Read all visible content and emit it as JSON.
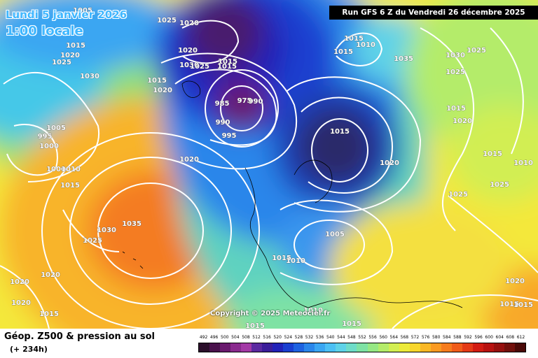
{
  "header": {
    "date_line": "Lundi 5 janvier 2026",
    "time_line": "1:00 locale",
    "run_banner": "Run GFS 6 Z du Vendredi 26 décembre 2025",
    "copyright": "Copyright © 2025 Meteociel.fr"
  },
  "footer": {
    "title": "Géop. Z500 & pression au sol",
    "lead": "(+ 234h)"
  },
  "legend": {
    "values": [
      "492",
      "496",
      "500",
      "504",
      "508",
      "512",
      "516",
      "520",
      "524",
      "528",
      "532",
      "536",
      "540",
      "544",
      "548",
      "552",
      "556",
      "560",
      "564",
      "568",
      "572",
      "576",
      "580",
      "584",
      "588",
      "592",
      "596",
      "600",
      "604",
      "608",
      "612"
    ],
    "colors": [
      "#2b0f2b",
      "#4a124c",
      "#6a1a6e",
      "#8a2a8e",
      "#a33aa6",
      "#5b2aa0",
      "#3b1e9a",
      "#2222b8",
      "#1a3fd0",
      "#1e62e0",
      "#2a86ea",
      "#3aa6f2",
      "#4cc0f4",
      "#5ed2e8",
      "#6edcc8",
      "#7ee2a4",
      "#96e884",
      "#b4ec6a",
      "#d2ee52",
      "#ecea3a",
      "#f8d62c",
      "#fab826",
      "#fa9a22",
      "#f67c1e",
      "#f05c1a",
      "#e43a16",
      "#d21c12",
      "#b81210",
      "#96100e",
      "#72100c",
      "#4a0a08"
    ]
  },
  "pressure_labels": [
    "1005",
    "1025",
    "1020",
    "1015",
    "1020",
    "1025",
    "1030",
    "1020",
    "1015",
    "1030",
    "1020",
    "1025",
    "1015",
    "1015",
    "1005",
    "995",
    "1000",
    "1000",
    "1010",
    "1015",
    "1030",
    "1035",
    "1025",
    "1015",
    "1010",
    "1015",
    "1020",
    "1015",
    "985",
    "975",
    "990",
    "990",
    "995",
    "1020",
    "1025",
    "1015",
    "1020",
    "1015",
    "1010",
    "1035",
    "1030",
    "1025",
    "1020",
    "1020",
    "1020",
    "1025",
    "1025",
    "1005",
    "1015",
    "1010",
    "1010",
    "1015",
    "1015",
    "1020",
    "1015",
    "1015",
    "1015"
  ]
}
